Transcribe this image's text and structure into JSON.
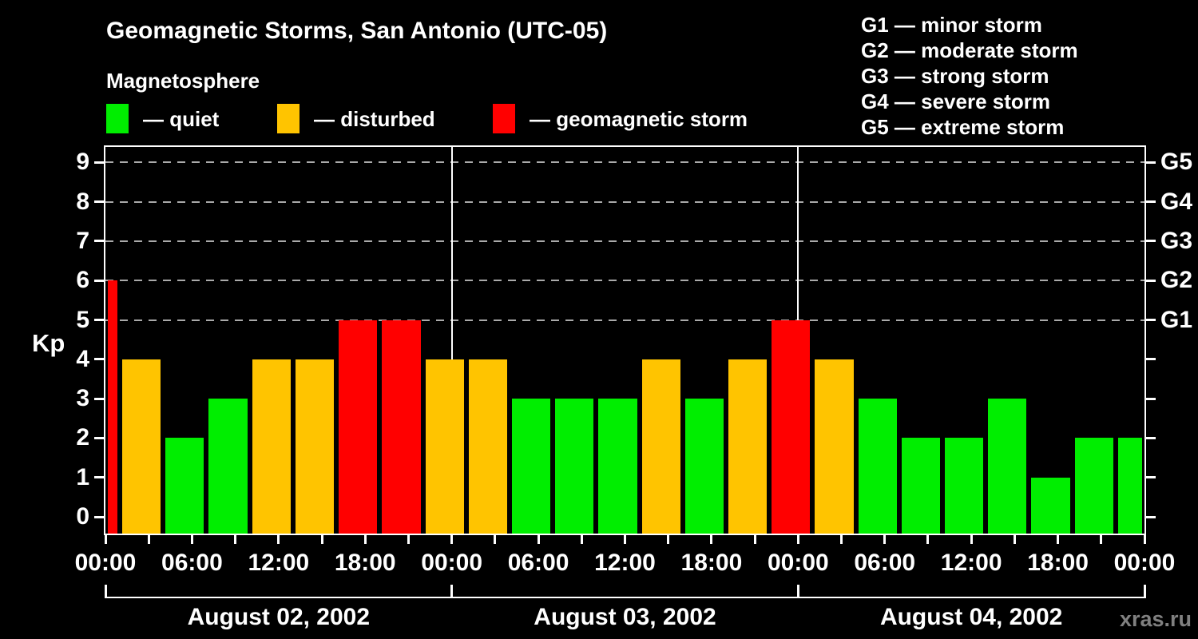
{
  "title": "Geomagnetic Storms, San Antonio (UTC-05)",
  "watermark": "xras.ru",
  "legend": {
    "heading": "Magnetosphere",
    "items": [
      {
        "key": "quiet",
        "label": "— quiet"
      },
      {
        "key": "disturbed",
        "label": "— disturbed"
      },
      {
        "key": "storm",
        "label": "— geomagnetic storm"
      }
    ]
  },
  "g_legend": [
    "G1 — minor storm",
    "G2 — moderate storm",
    "G3 — strong storm",
    "G4 — severe storm",
    "G5 — extreme storm"
  ],
  "chart_data": {
    "type": "bar",
    "ylabel": "Kp",
    "ylim": [
      0,
      9
    ],
    "yticks": [
      0,
      1,
      2,
      3,
      4,
      5,
      6,
      7,
      8,
      9
    ],
    "grid": "dashed horizontal at Kp 5-9",
    "gridlines_kp": [
      5,
      6,
      7,
      8,
      9
    ],
    "g_scale": [
      {
        "label": "G1",
        "kp": 5
      },
      {
        "label": "G2",
        "kp": 6
      },
      {
        "label": "G3",
        "kp": 7
      },
      {
        "label": "G4",
        "kp": 8
      },
      {
        "label": "G5",
        "kp": 9
      }
    ],
    "x_hours_total": 72,
    "xtick_interval_hours": 3,
    "xlabel_interval_hours": 6,
    "xtick_labels": [
      "00:00",
      "06:00",
      "12:00",
      "18:00",
      "00:00",
      "06:00",
      "12:00",
      "18:00",
      "00:00",
      "06:00",
      "12:00",
      "18:00",
      "00:00"
    ],
    "day_boundaries_hours": [
      24,
      48
    ],
    "days": [
      {
        "label": "August 02, 2002",
        "start_hour": 0,
        "end_hour": 24
      },
      {
        "label": "August 03, 2002",
        "start_hour": 24,
        "end_hour": 48
      },
      {
        "label": "August 04, 2002",
        "start_hour": 48,
        "end_hour": 72
      }
    ],
    "status_colors": {
      "quiet": "#00EE00",
      "disturbed": "#FFC400",
      "storm": "#FF0000"
    },
    "bars": [
      {
        "start_hour": 0,
        "end_hour": 1,
        "kp": 6,
        "status": "storm"
      },
      {
        "start_hour": 1,
        "end_hour": 4,
        "kp": 4,
        "status": "disturbed"
      },
      {
        "start_hour": 4,
        "end_hour": 7,
        "kp": 2,
        "status": "quiet"
      },
      {
        "start_hour": 7,
        "end_hour": 10,
        "kp": 3,
        "status": "quiet"
      },
      {
        "start_hour": 10,
        "end_hour": 13,
        "kp": 4,
        "status": "disturbed"
      },
      {
        "start_hour": 13,
        "end_hour": 16,
        "kp": 4,
        "status": "disturbed"
      },
      {
        "start_hour": 16,
        "end_hour": 19,
        "kp": 5,
        "status": "storm"
      },
      {
        "start_hour": 19,
        "end_hour": 22,
        "kp": 5,
        "status": "storm"
      },
      {
        "start_hour": 22,
        "end_hour": 25,
        "kp": 4,
        "status": "disturbed"
      },
      {
        "start_hour": 25,
        "end_hour": 28,
        "kp": 4,
        "status": "disturbed"
      },
      {
        "start_hour": 28,
        "end_hour": 31,
        "kp": 3,
        "status": "quiet"
      },
      {
        "start_hour": 31,
        "end_hour": 34,
        "kp": 3,
        "status": "quiet"
      },
      {
        "start_hour": 34,
        "end_hour": 37,
        "kp": 3,
        "status": "quiet"
      },
      {
        "start_hour": 37,
        "end_hour": 40,
        "kp": 4,
        "status": "disturbed"
      },
      {
        "start_hour": 40,
        "end_hour": 43,
        "kp": 3,
        "status": "quiet"
      },
      {
        "start_hour": 43,
        "end_hour": 46,
        "kp": 4,
        "status": "disturbed"
      },
      {
        "start_hour": 46,
        "end_hour": 49,
        "kp": 5,
        "status": "storm"
      },
      {
        "start_hour": 49,
        "end_hour": 52,
        "kp": 4,
        "status": "disturbed"
      },
      {
        "start_hour": 52,
        "end_hour": 55,
        "kp": 3,
        "status": "quiet"
      },
      {
        "start_hour": 55,
        "end_hour": 58,
        "kp": 2,
        "status": "quiet"
      },
      {
        "start_hour": 58,
        "end_hour": 61,
        "kp": 2,
        "status": "quiet"
      },
      {
        "start_hour": 61,
        "end_hour": 64,
        "kp": 3,
        "status": "quiet"
      },
      {
        "start_hour": 64,
        "end_hour": 67,
        "kp": 1,
        "status": "quiet"
      },
      {
        "start_hour": 67,
        "end_hour": 70,
        "kp": 2,
        "status": "quiet"
      },
      {
        "start_hour": 70,
        "end_hour": 72,
        "kp": 2,
        "status": "quiet"
      }
    ]
  }
}
